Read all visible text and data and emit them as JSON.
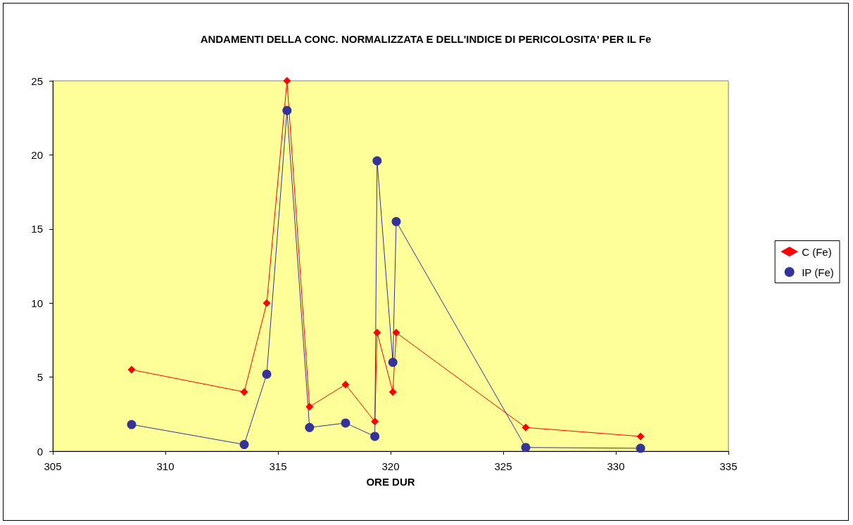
{
  "chart_data": {
    "type": "line",
    "title": "ANDAMENTI DELLA CONC. NORMALIZZATA E DELL'INDICE DI PERICOLOSITA' PER IL Fe",
    "xlabel": "ORE DUR",
    "xlim": [
      305,
      335
    ],
    "xticks": [
      305,
      310,
      315,
      320,
      325,
      330,
      335
    ],
    "ylim": [
      0,
      25
    ],
    "yticks": [
      0,
      5,
      10,
      15,
      20,
      25
    ],
    "grid": false,
    "legend": "right",
    "series": [
      {
        "name": "C (Fe)",
        "color": "#ff0000",
        "marker": "diamond",
        "x": [
          308.5,
          313.5,
          314.5,
          315.4,
          316.4,
          318,
          319.3,
          319.4,
          320.1,
          320.25,
          326,
          331.1
        ],
        "values": [
          5.5,
          4,
          10,
          25,
          3,
          4.5,
          2,
          8,
          4,
          8,
          1.6,
          1
        ]
      },
      {
        "name": "IP (Fe)",
        "color": "#333399",
        "marker": "circle",
        "x": [
          308.5,
          313.5,
          314.5,
          315.4,
          316.4,
          318,
          319.3,
          319.4,
          320.1,
          320.25,
          326,
          331.1
        ],
        "values": [
          1.8,
          0.45,
          5.2,
          23,
          1.6,
          1.9,
          1,
          19.6,
          6,
          15.5,
          0.25,
          0.2
        ]
      }
    ]
  }
}
